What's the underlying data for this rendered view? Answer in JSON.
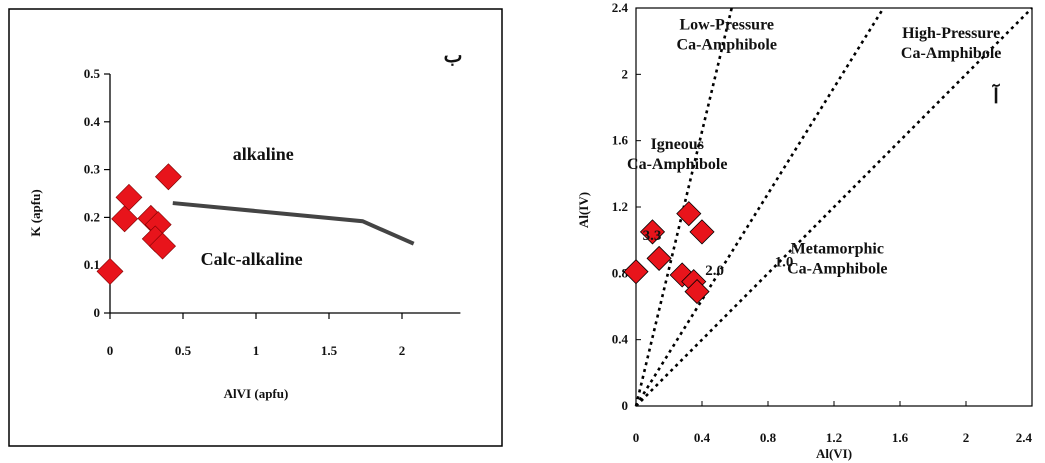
{
  "chart_data": [
    {
      "type": "scatter",
      "panel_marker": "ب",
      "xlabel": "AlVI (apfu)",
      "ylabel": "K (apfu)",
      "xlim": [
        0,
        2.4
      ],
      "ylim": [
        0,
        0.5
      ],
      "x_ticks": [
        "0",
        "0.5",
        "1",
        "1.5",
        "2"
      ],
      "x_tick_values": [
        0,
        0.5,
        1,
        1.5,
        2
      ],
      "y_ticks": [
        "0",
        "0.1",
        "0.2",
        "0.3",
        "0.4",
        "0.5"
      ],
      "y_tick_values": [
        0,
        0.1,
        0.2,
        0.3,
        0.4,
        0.5
      ],
      "marker_color": "#e8141b",
      "line_color": "#444444",
      "points": [
        {
          "x": 0.0,
          "y": 0.087
        },
        {
          "x": 0.1,
          "y": 0.197
        },
        {
          "x": 0.13,
          "y": 0.242
        },
        {
          "x": 0.28,
          "y": 0.198
        },
        {
          "x": 0.33,
          "y": 0.185
        },
        {
          "x": 0.31,
          "y": 0.155
        },
        {
          "x": 0.36,
          "y": 0.14
        },
        {
          "x": 0.4,
          "y": 0.285
        }
      ],
      "divider_line": [
        {
          "x": 0.43,
          "y": 0.23
        },
        {
          "x": 1.73,
          "y": 0.192
        },
        {
          "x": 2.08,
          "y": 0.145
        }
      ],
      "regions": [
        {
          "label": "alkaline",
          "x": 1.05,
          "y": 0.32
        },
        {
          "label": "Calc-alkaline",
          "x": 0.97,
          "y": 0.1
        }
      ]
    },
    {
      "type": "scatter",
      "panel_marker": "آ",
      "xlabel": "Al(VI)",
      "ylabel": "Al(IV)",
      "xlim": [
        0,
        2.4
      ],
      "ylim": [
        0,
        2.4
      ],
      "x_ticks": [
        "0",
        "0.4",
        "0.8",
        "1.2",
        "1.6",
        "2",
        "2.4"
      ],
      "x_tick_values": [
        0,
        0.4,
        0.8,
        1.2,
        1.6,
        2,
        2.4
      ],
      "y_ticks": [
        "0",
        "0.4",
        "0.8",
        "1.2",
        "1.6",
        "2",
        "2.4"
      ],
      "y_tick_values": [
        0,
        0.4,
        0.8,
        1.2,
        1.6,
        2,
        2.4
      ],
      "marker_color": "#e8141b",
      "points": [
        {
          "x": 0.0,
          "y": 0.81
        },
        {
          "x": 0.1,
          "y": 1.05
        },
        {
          "x": 0.14,
          "y": 0.89
        },
        {
          "x": 0.28,
          "y": 0.79
        },
        {
          "x": 0.32,
          "y": 1.16
        },
        {
          "x": 0.35,
          "y": 0.75
        },
        {
          "x": 0.4,
          "y": 1.05
        },
        {
          "x": 0.37,
          "y": 0.69
        }
      ],
      "ratio_lines": [
        {
          "label": "3.3",
          "x_end": 0.58,
          "y_end": 2.4,
          "label_x": 0.04,
          "label_y": 1.0
        },
        {
          "label": "2.0",
          "x_end": 1.5,
          "y_end": 2.4,
          "label_x": 0.42,
          "label_y": 0.79
        },
        {
          "label": "1.0",
          "x_end": 2.4,
          "y_end": 2.4,
          "label_x": 0.84,
          "label_y": 0.84
        }
      ],
      "regions": [
        {
          "lines": [
            "Low-Pressure",
            "Ca-Amphibole"
          ],
          "x": 0.55,
          "y": 2.27
        },
        {
          "lines": [
            "High-Pressure",
            "Ca-Amphibole"
          ],
          "x": 1.91,
          "y": 2.22
        },
        {
          "lines": [
            "Igneous",
            "Ca-Amphibole"
          ],
          "x": 0.25,
          "y": 1.55
        },
        {
          "lines": [
            "Metamorphic",
            "Ca-Amphibole"
          ],
          "x": 1.22,
          "y": 0.92
        }
      ]
    }
  ]
}
